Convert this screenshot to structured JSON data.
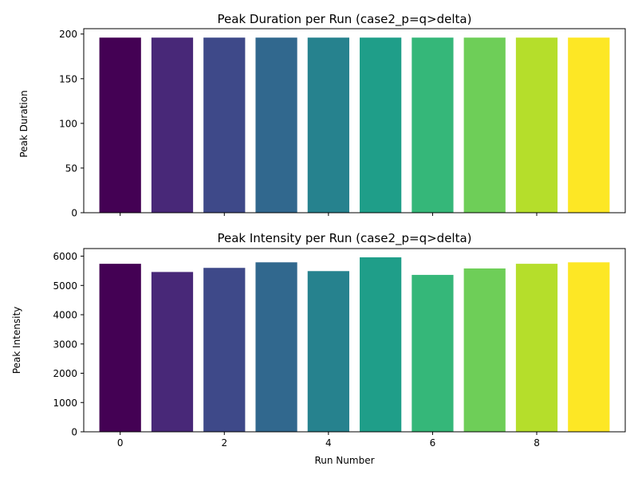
{
  "chart_data": [
    {
      "type": "bar",
      "title": "Peak Duration per Run (case2_p=q>delta)",
      "xlabel": "",
      "ylabel": "Peak Duration",
      "x": [
        0,
        1,
        2,
        3,
        4,
        5,
        6,
        7,
        8,
        9
      ],
      "values": [
        196,
        196,
        196,
        196,
        196,
        196,
        196,
        196,
        196,
        196
      ],
      "ylim": [
        0,
        206
      ],
      "xlim": [
        -0.7,
        9.7
      ],
      "yticks": [
        0,
        50,
        100,
        150,
        200
      ],
      "xticks": [
        0,
        2,
        4,
        6,
        8
      ],
      "show_xtick_labels": false,
      "grid": false
    },
    {
      "type": "bar",
      "title": "Peak Intensity per Run (case2_p=q>delta)",
      "xlabel": "Run Number",
      "ylabel": "Peak Intensity",
      "x": [
        0,
        1,
        2,
        3,
        4,
        5,
        6,
        7,
        8,
        9
      ],
      "values": [
        5740,
        5460,
        5600,
        5790,
        5490,
        5960,
        5360,
        5580,
        5740,
        5790
      ],
      "ylim": [
        0,
        6260
      ],
      "xlim": [
        -0.7,
        9.7
      ],
      "yticks": [
        0,
        1000,
        2000,
        3000,
        4000,
        5000,
        6000
      ],
      "xticks": [
        0,
        2,
        4,
        6,
        8
      ],
      "show_xtick_labels": true,
      "grid": false
    }
  ],
  "colors": [
    "#440154",
    "#482878",
    "#3e4989",
    "#31688e",
    "#26828e",
    "#1f9e89",
    "#35b779",
    "#6ece58",
    "#b5de2b",
    "#fde725"
  ]
}
